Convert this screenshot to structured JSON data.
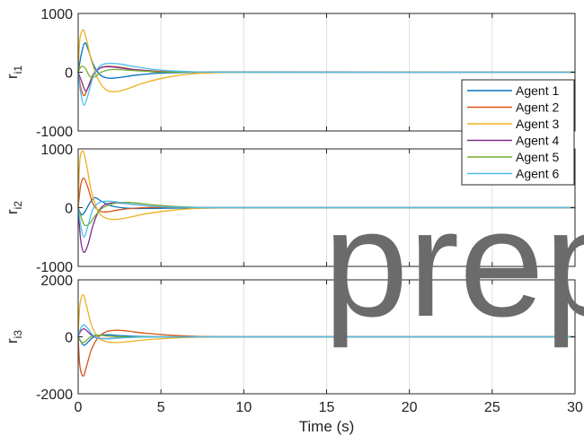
{
  "chart_data": [
    {
      "type": "line",
      "ylabel": "r",
      "ylabel_sub": "i1",
      "ylim": [
        -1000,
        1000
      ],
      "yticks": [
        -1000,
        0,
        1000
      ],
      "xlim": [
        0,
        30
      ],
      "xticks": [],
      "grid": true,
      "legend_position": "right",
      "series": [
        {
          "name": "Agent 1",
          "color": "#0072bd",
          "x": [
            0,
            0.2,
            0.4,
            0.6,
            0.9,
            1.3,
            1.8,
            2.5,
            3.5,
            5,
            7,
            10,
            30
          ],
          "y": [
            0,
            320,
            500,
            390,
            140,
            -40,
            -100,
            -90,
            -50,
            -15,
            -3,
            0,
            0
          ]
        },
        {
          "name": "Agent 2",
          "color": "#d95319",
          "x": [
            0,
            0.15,
            0.35,
            0.6,
            0.9,
            1.3,
            1.8,
            2.5,
            3.5,
            5,
            7,
            10,
            30
          ],
          "y": [
            0,
            -250,
            -400,
            -250,
            -40,
            70,
            100,
            85,
            45,
            12,
            2,
            0,
            0
          ]
        },
        {
          "name": "Agent 3",
          "color": "#edb120",
          "x": [
            0,
            0.1,
            0.3,
            0.5,
            0.8,
            1.2,
            1.7,
            2.3,
            3,
            4,
            5.5,
            7,
            9,
            12,
            30
          ],
          "y": [
            0,
            550,
            720,
            560,
            200,
            -120,
            -300,
            -330,
            -280,
            -180,
            -80,
            -25,
            -5,
            0,
            0
          ]
        },
        {
          "name": "Agent 4",
          "color": "#7e2f8e",
          "x": [
            0,
            0.2,
            0.45,
            0.7,
            1,
            1.4,
            2,
            3,
            4.5,
            7,
            30
          ],
          "y": [
            0,
            -150,
            -320,
            -200,
            -20,
            80,
            90,
            55,
            20,
            3,
            0
          ]
        },
        {
          "name": "Agent 5",
          "color": "#77ac30",
          "x": [
            0,
            0.2,
            0.45,
            0.7,
            1,
            1.4,
            2,
            3,
            4.5,
            7,
            30
          ],
          "y": [
            0,
            100,
            60,
            -70,
            -80,
            0,
            45,
            35,
            12,
            2,
            0
          ]
        },
        {
          "name": "Agent 6",
          "color": "#4dbeee",
          "x": [
            0,
            0.15,
            0.35,
            0.6,
            0.9,
            1.3,
            1.8,
            2.5,
            3.5,
            5,
            7,
            10,
            30
          ],
          "y": [
            0,
            -350,
            -560,
            -380,
            -80,
            100,
            150,
            140,
            90,
            35,
            8,
            0,
            0
          ]
        }
      ]
    },
    {
      "type": "line",
      "ylabel": "r",
      "ylabel_sub": "i2",
      "ylim": [
        -1000,
        1000
      ],
      "yticks": [
        -1000,
        0,
        1000
      ],
      "xlim": [
        0,
        30
      ],
      "xticks": [],
      "grid": true,
      "series": [
        {
          "name": "Agent 1",
          "color": "#0072bd",
          "x": [
            0,
            0.2,
            0.45,
            0.7,
            1,
            1.4,
            2,
            3,
            4.5,
            7,
            10,
            30
          ],
          "y": [
            0,
            -120,
            -50,
            80,
            170,
            110,
            30,
            -10,
            -12,
            -3,
            0,
            0
          ]
        },
        {
          "name": "Agent 2",
          "color": "#d95319",
          "x": [
            0,
            0.15,
            0.35,
            0.6,
            0.9,
            1.3,
            1.8,
            2.5,
            3.5,
            5,
            7,
            10,
            30
          ],
          "y": [
            0,
            380,
            500,
            330,
            60,
            -60,
            -70,
            -35,
            -8,
            5,
            2,
            0,
            0
          ]
        },
        {
          "name": "Agent 3",
          "color": "#edb120",
          "x": [
            0,
            0.1,
            0.3,
            0.5,
            0.8,
            1.2,
            1.7,
            2.3,
            3,
            4,
            5.5,
            7,
            9,
            12,
            30
          ],
          "y": [
            0,
            800,
            960,
            740,
            280,
            -60,
            -180,
            -200,
            -170,
            -110,
            -50,
            -15,
            -3,
            0,
            0
          ]
        },
        {
          "name": "Agent 4",
          "color": "#7e2f8e",
          "x": [
            0,
            0.15,
            0.35,
            0.6,
            0.9,
            1.3,
            1.8,
            2.5,
            3.5,
            5,
            7,
            10,
            30
          ],
          "y": [
            0,
            -550,
            -760,
            -620,
            -300,
            -30,
            70,
            80,
            50,
            15,
            3,
            0,
            0
          ]
        },
        {
          "name": "Agent 5",
          "color": "#77ac30",
          "x": [
            0,
            0.2,
            0.4,
            0.7,
            1,
            1.4,
            2,
            2.7,
            3.5,
            5,
            7,
            10,
            30
          ],
          "y": [
            0,
            -180,
            -300,
            -270,
            -150,
            -20,
            60,
            90,
            80,
            35,
            8,
            0,
            0
          ]
        },
        {
          "name": "Agent 6",
          "color": "#4dbeee",
          "x": [
            0,
            0.15,
            0.35,
            0.6,
            0.9,
            1.3,
            1.8,
            2.5,
            3.5,
            5,
            7,
            10,
            30
          ],
          "y": [
            0,
            -300,
            -500,
            -300,
            -20,
            90,
            110,
            90,
            50,
            15,
            3,
            0,
            0
          ]
        }
      ]
    },
    {
      "type": "line",
      "ylabel": "r",
      "ylabel_sub": "i3",
      "ylim": [
        -2000,
        2000
      ],
      "yticks": [
        -2000,
        0,
        2000
      ],
      "xlim": [
        0,
        30
      ],
      "xticks": [
        0,
        5,
        10,
        15,
        20,
        25,
        30
      ],
      "xlabel": "Time (s)",
      "grid": true,
      "series": [
        {
          "name": "Agent 1",
          "color": "#0072bd",
          "x": [
            0,
            0.15,
            0.35,
            0.6,
            0.9,
            1.3,
            1.8,
            2.5,
            3.5,
            5,
            7,
            10,
            30
          ],
          "y": [
            0,
            -150,
            -300,
            -180,
            -20,
            60,
            70,
            45,
            15,
            3,
            0,
            0,
            0
          ]
        },
        {
          "name": "Agent 2",
          "color": "#d95319",
          "x": [
            0,
            0.1,
            0.3,
            0.5,
            0.8,
            1.2,
            1.7,
            2.3,
            3,
            4,
            5.5,
            7,
            9,
            12,
            30
          ],
          "y": [
            0,
            -1000,
            -1380,
            -1050,
            -450,
            -30,
            180,
            230,
            200,
            130,
            60,
            20,
            4,
            0,
            0
          ]
        },
        {
          "name": "Agent 3",
          "color": "#edb120",
          "x": [
            0,
            0.1,
            0.3,
            0.5,
            0.8,
            1.2,
            1.7,
            2.3,
            3,
            4,
            5.5,
            7,
            9,
            12,
            30
          ],
          "y": [
            0,
            1100,
            1480,
            1100,
            420,
            -20,
            -170,
            -200,
            -170,
            -110,
            -50,
            -15,
            -3,
            0,
            0
          ]
        },
        {
          "name": "Agent 4",
          "color": "#7e2f8e",
          "x": [
            0,
            0.15,
            0.35,
            0.6,
            0.9,
            1.3,
            1.8,
            2.5,
            3.5,
            5,
            7,
            10,
            30
          ],
          "y": [
            0,
            200,
            280,
            170,
            20,
            -50,
            -60,
            -35,
            -10,
            -2,
            0,
            0,
            0
          ]
        },
        {
          "name": "Agent 5",
          "color": "#77ac30",
          "x": [
            0,
            0.2,
            0.45,
            0.7,
            1,
            1.4,
            2,
            3,
            4.5,
            7,
            30
          ],
          "y": [
            0,
            -200,
            -150,
            -20,
            60,
            50,
            15,
            -5,
            -3,
            0,
            0
          ]
        },
        {
          "name": "Agent 6",
          "color": "#4dbeee",
          "x": [
            0,
            0.15,
            0.35,
            0.6,
            0.9,
            1.3,
            1.8,
            2.5,
            3.5,
            5,
            7,
            10,
            30
          ],
          "y": [
            0,
            300,
            420,
            280,
            60,
            -50,
            -70,
            -45,
            -15,
            -3,
            0,
            0,
            0
          ]
        }
      ]
    }
  ],
  "watermark": "prep",
  "colors": {
    "axis": "#262626",
    "grid": "#dfdfdf",
    "background": "#ffffff"
  }
}
